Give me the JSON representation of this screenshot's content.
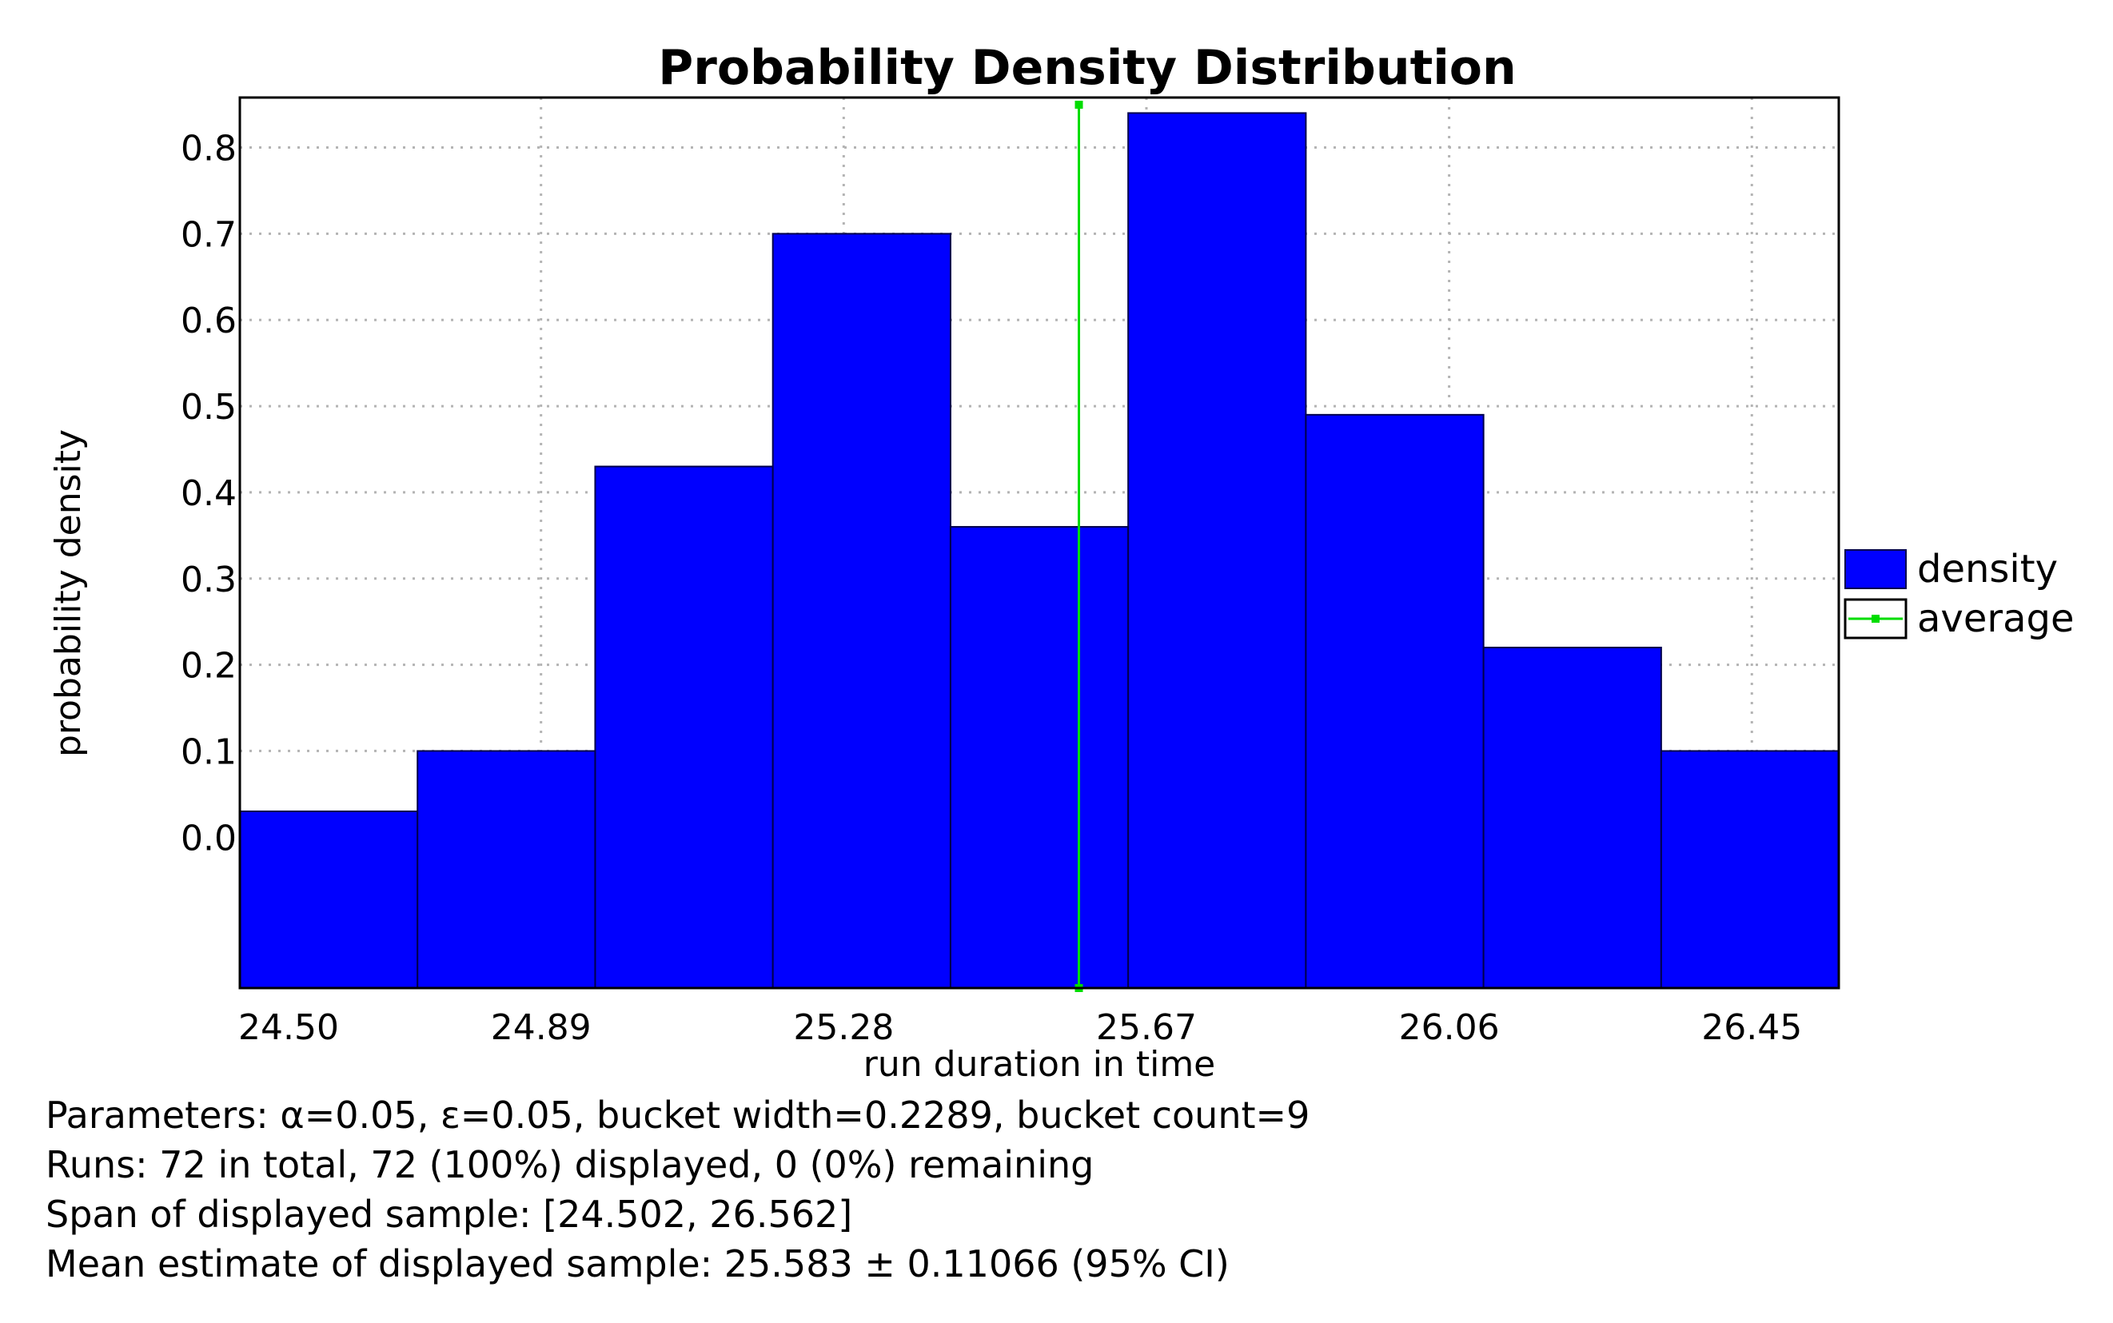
{
  "chart_data": {
    "type": "bar",
    "title": "Probability Density Distribution",
    "xlabel": "run duration in time",
    "ylabel": "probability density",
    "x_ticks": [
      "24.50",
      "24.89",
      "25.28",
      "25.67",
      "26.06",
      "26.45"
    ],
    "y_ticks": [
      "0.0",
      "0.1",
      "0.2",
      "0.3",
      "0.4",
      "0.5",
      "0.6",
      "0.7",
      "0.8"
    ],
    "xlim": [
      24.502,
      26.562
    ],
    "ylim": [
      -0.175,
      0.858
    ],
    "bin_edges": [
      24.502,
      24.7309,
      24.9598,
      25.1887,
      25.4176,
      25.6465,
      25.8754,
      26.1043,
      26.3332,
      26.5621
    ],
    "series": [
      {
        "name": "density",
        "type": "bar",
        "color": "#0000ff",
        "values": [
          0.03,
          0.1,
          0.43,
          0.7,
          0.36,
          0.84,
          0.49,
          0.22,
          0.1
        ]
      },
      {
        "name": "average",
        "type": "vline",
        "color": "#00dd00",
        "x": 25.583
      }
    ],
    "grid": true,
    "legend": "right"
  },
  "info": {
    "parameters": "Parameters: α=0.05, ε=0.05, bucket width=0.2289, bucket count=9",
    "runs": "Runs: 72 in total, 72 (100%) displayed, 0 (0%) remaining",
    "span": "Span of displayed sample: [24.502, 26.562]",
    "mean": "Mean estimate of displayed sample: 25.583 ± 0.11066 (95% CI)"
  }
}
